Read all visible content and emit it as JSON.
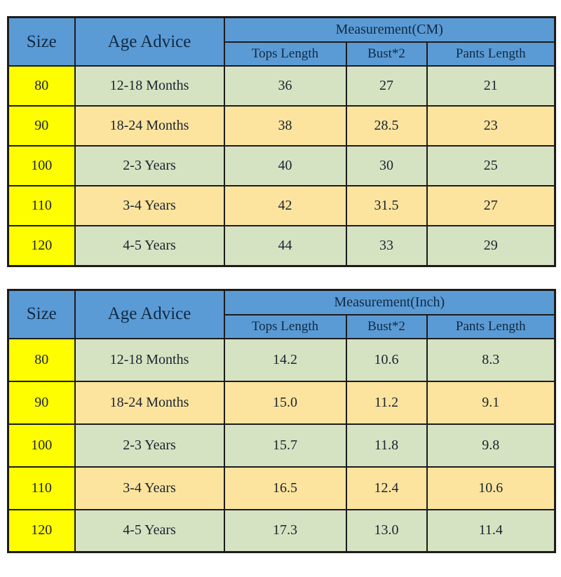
{
  "colors": {
    "header-blue": "#5b9bd5",
    "row-green": "#d6e3c2",
    "row-tan": "#fce49e",
    "size-yellow": "#fefe00",
    "border-color": "#1c1c1c",
    "text-color": "#1b2330",
    "header-text": "#102a43",
    "page-bg": "#ffffff"
  },
  "tables": [
    {
      "header": {
        "size": "Size",
        "age": "Age Advice",
        "measurement": "Measurement(CM)",
        "sub": [
          "Tops Length",
          "Bust*2",
          "Pants Length"
        ]
      },
      "rows": [
        {
          "size": "80",
          "age": "12-18 Months",
          "values": [
            "36",
            "27",
            "21"
          ]
        },
        {
          "size": "90",
          "age": "18-24 Months",
          "values": [
            "38",
            "28.5",
            "23"
          ]
        },
        {
          "size": "100",
          "age": "2-3 Years",
          "values": [
            "40",
            "30",
            "25"
          ]
        },
        {
          "size": "110",
          "age": "3-4 Years",
          "values": [
            "42",
            "31.5",
            "27"
          ]
        },
        {
          "size": "120",
          "age": "4-5 Years",
          "values": [
            "44",
            "33",
            "29"
          ]
        }
      ]
    },
    {
      "header": {
        "size": "Size",
        "age": "Age Advice",
        "measurement": "Measurement(Inch)",
        "sub": [
          "Tops Length",
          "Bust*2",
          "Pants Length"
        ]
      },
      "rows": [
        {
          "size": "80",
          "age": "12-18 Months",
          "values": [
            "14.2",
            "10.6",
            "8.3"
          ]
        },
        {
          "size": "90",
          "age": "18-24 Months",
          "values": [
            "15.0",
            "11.2",
            "9.1"
          ]
        },
        {
          "size": "100",
          "age": "2-3 Years",
          "values": [
            "15.7",
            "11.8",
            "9.8"
          ]
        },
        {
          "size": "110",
          "age": "3-4 Years",
          "values": [
            "16.5",
            "12.4",
            "10.6"
          ]
        },
        {
          "size": "120",
          "age": "4-5 Years",
          "values": [
            "17.3",
            "13.0",
            "11.4"
          ]
        }
      ]
    }
  ]
}
